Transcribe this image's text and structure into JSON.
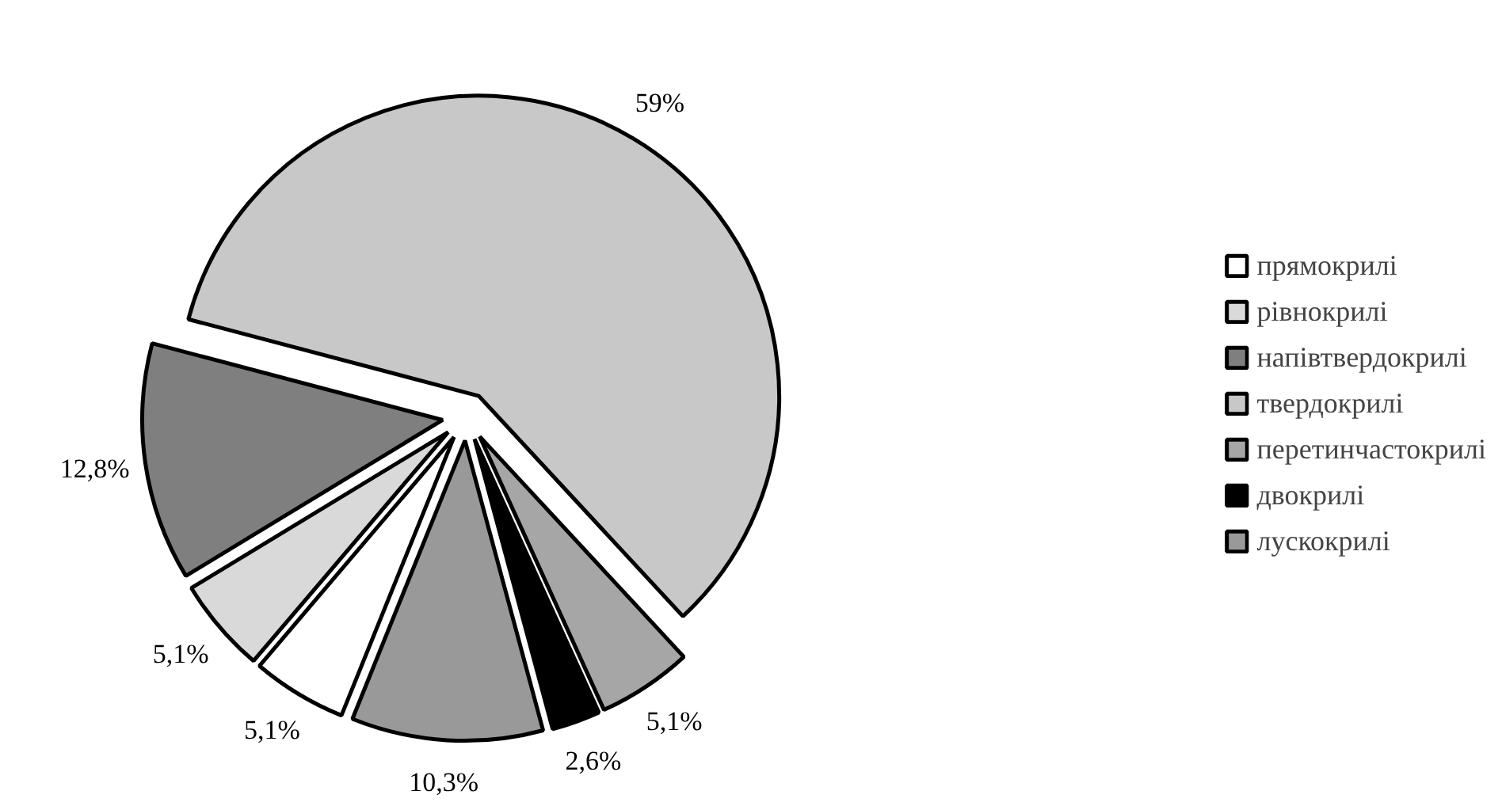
{
  "chart_data": {
    "type": "pie",
    "categories": [
      "прямокрилі",
      "рівнокрилі",
      "напівтвердокрилі",
      "твердокрилі",
      "перетинчастокрилі",
      "двокрилі",
      "лускокрилі"
    ],
    "values": [
      5.1,
      5.1,
      12.8,
      59,
      5.1,
      2.6,
      10.3
    ],
    "colors": [
      "#ffffff",
      "#d9d9d9",
      "#7f7f7f",
      "#c8c8c8",
      "#a6a6a6",
      "#000000",
      "#999999"
    ],
    "value_labels": [
      "5,1%",
      "5,1%",
      "12,8%",
      "59%",
      "5,1%",
      "2,6%",
      "10,3%"
    ],
    "legend": "right"
  }
}
